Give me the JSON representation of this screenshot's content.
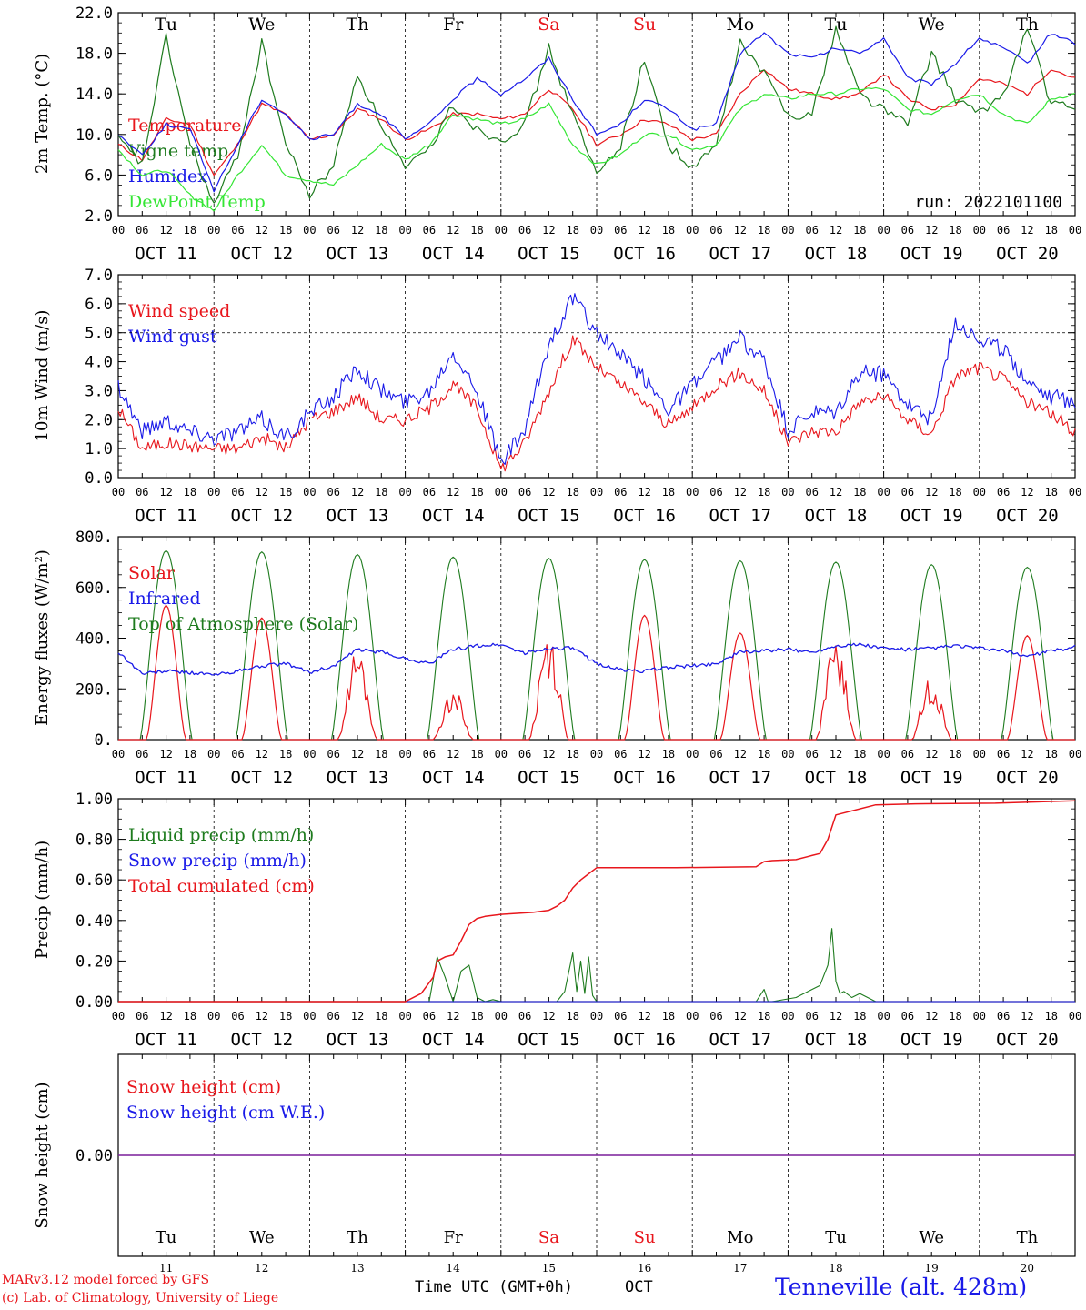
{
  "chart_data": [
    {
      "type": "line",
      "ylabel": "2m Temp. (°C)",
      "ylim": [
        2,
        22
      ],
      "yticks": [
        "2.0",
        "6.0",
        "10.0",
        "14.0",
        "18.0",
        "22.0"
      ],
      "ytick_values": [
        2,
        6,
        10,
        14,
        18,
        22
      ],
      "annotation": "run: 2022101100",
      "weekday_labels": [
        {
          "text": "Tu",
          "color": "#000000"
        },
        {
          "text": "We",
          "color": "#000000"
        },
        {
          "text": "Th",
          "color": "#000000"
        },
        {
          "text": "Fr",
          "color": "#000000"
        },
        {
          "text": "Sa",
          "color": "#e8161c"
        },
        {
          "text": "Su",
          "color": "#e8161c"
        },
        {
          "text": "Mo",
          "color": "#000000"
        },
        {
          "text": "Tu",
          "color": "#000000"
        },
        {
          "text": "We",
          "color": "#000000"
        },
        {
          "text": "Th",
          "color": "#000000"
        }
      ],
      "x_hours": [
        0,
        6,
        12,
        18,
        24,
        30,
        36,
        42,
        48,
        54,
        60,
        66,
        72,
        78,
        84,
        90,
        96,
        102,
        108,
        114,
        120,
        126,
        132,
        138,
        144,
        150,
        156,
        162,
        168,
        174,
        180,
        186,
        192,
        198,
        204,
        210,
        216,
        222,
        228,
        234,
        240
      ],
      "series": [
        {
          "name": "Temperature",
          "color": "#e8161c",
          "values": [
            9.0,
            7.5,
            11.5,
            11.0,
            6.0,
            9.0,
            13.0,
            12.0,
            9.5,
            10.0,
            12.5,
            11.5,
            9.5,
            10.5,
            12.0,
            12.0,
            11.5,
            12.0,
            14.5,
            12.5,
            9.0,
            10.0,
            11.5,
            11.0,
            9.5,
            10.0,
            14.0,
            16.5,
            14.5,
            14.0,
            13.5,
            14.0,
            16.0,
            13.5,
            12.5,
            13.0,
            15.5,
            15.0,
            14.0,
            16.5,
            15.5
          ]
        },
        {
          "name": "Vigne temp",
          "color": "#1e7b1e",
          "values": [
            9.5,
            7.0,
            19.5,
            9.0,
            3.0,
            8.0,
            19.0,
            9.0,
            4.0,
            7.0,
            16.0,
            11.0,
            6.5,
            8.5,
            13.0,
            10.5,
            9.5,
            11.0,
            18.5,
            12.0,
            6.0,
            9.0,
            17.5,
            9.0,
            6.5,
            9.0,
            19.0,
            16.0,
            12.0,
            12.0,
            20.5,
            14.0,
            12.5,
            11.0,
            18.0,
            13.5,
            12.0,
            14.0,
            20.5,
            13.0,
            12.5
          ]
        },
        {
          "name": "Humidex",
          "color": "#1a1ae8",
          "values": [
            10.0,
            8.0,
            11.0,
            10.5,
            4.5,
            9.0,
            13.5,
            12.0,
            9.5,
            10.0,
            13.0,
            12.0,
            9.5,
            11.0,
            13.5,
            15.5,
            14.0,
            15.5,
            17.5,
            13.5,
            10.0,
            11.0,
            13.5,
            12.5,
            10.5,
            11.0,
            18.0,
            20.0,
            18.0,
            17.5,
            18.5,
            18.0,
            19.5,
            15.5,
            15.0,
            17.0,
            19.5,
            18.5,
            17.0,
            20.0,
            19.0
          ]
        },
        {
          "name": "DewPoint Temp",
          "color": "#35e635",
          "values": [
            8.5,
            6.0,
            6.5,
            4.0,
            2.5,
            6.0,
            9.0,
            6.0,
            5.5,
            5.0,
            7.0,
            9.0,
            7.5,
            9.0,
            12.0,
            11.5,
            11.0,
            11.5,
            13.0,
            9.0,
            7.0,
            8.0,
            10.0,
            10.0,
            8.5,
            9.0,
            12.5,
            14.0,
            13.5,
            14.0,
            14.0,
            14.5,
            14.5,
            12.5,
            12.0,
            13.5,
            14.0,
            12.0,
            11.0,
            13.5,
            14.0
          ]
        }
      ]
    },
    {
      "type": "line",
      "ylabel": "10m Wind (m/s)",
      "ylim": [
        0,
        7
      ],
      "yticks": [
        "0.0",
        "1.0",
        "2.0",
        "3.0",
        "4.0",
        "5.0",
        "6.0",
        "7.0"
      ],
      "ytick_values": [
        0,
        1,
        2,
        3,
        4,
        5,
        6,
        7
      ],
      "reference_line": 5.0,
      "x_hours": [
        0,
        6,
        12,
        18,
        24,
        30,
        36,
        42,
        48,
        54,
        60,
        66,
        72,
        78,
        84,
        90,
        96,
        102,
        108,
        114,
        120,
        126,
        132,
        138,
        144,
        150,
        156,
        162,
        168,
        174,
        180,
        186,
        192,
        198,
        204,
        210,
        216,
        222,
        228,
        234,
        240
      ],
      "series": [
        {
          "name": "Wind speed",
          "color": "#e8161c",
          "values": [
            2.4,
            1.0,
            1.2,
            1.1,
            1.0,
            1.0,
            1.4,
            1.0,
            2.0,
            2.3,
            2.8,
            2.0,
            2.0,
            2.4,
            3.2,
            2.4,
            0.3,
            1.2,
            3.0,
            4.8,
            3.8,
            3.2,
            2.6,
            1.8,
            2.4,
            3.2,
            3.6,
            3.0,
            1.2,
            1.6,
            1.6,
            2.6,
            2.8,
            2.0,
            1.5,
            3.5,
            3.8,
            3.4,
            2.6,
            2.2,
            1.6
          ]
        },
        {
          "name": "Wind gust",
          "color": "#1a1ae8",
          "values": [
            3.2,
            1.6,
            2.0,
            1.6,
            1.4,
            1.6,
            2.0,
            1.4,
            2.2,
            2.8,
            3.8,
            3.0,
            2.6,
            3.0,
            4.4,
            3.0,
            0.5,
            1.6,
            4.6,
            6.2,
            5.0,
            4.2,
            3.4,
            2.4,
            3.2,
            4.0,
            4.8,
            4.0,
            1.6,
            2.2,
            2.2,
            3.6,
            3.6,
            2.6,
            2.0,
            5.4,
            4.8,
            4.4,
            3.4,
            2.8,
            2.6
          ]
        }
      ]
    },
    {
      "type": "line",
      "ylabel": "Energy fluxes (W/m²)",
      "ylim": [
        0,
        800
      ],
      "yticks": [
        "0.",
        "200.",
        "400.",
        "600.",
        "800."
      ],
      "ytick_values": [
        0,
        200,
        400,
        600,
        800
      ],
      "daily_toa_peak": [
        745,
        740,
        730,
        720,
        715,
        710,
        705,
        700,
        690,
        680
      ],
      "daily_solar_peak": [
        530,
        480,
        280,
        160,
        340,
        490,
        420,
        310,
        200,
        410
      ],
      "series": [
        {
          "name": "Solar",
          "color": "#e8161c"
        },
        {
          "name": "Infrared",
          "color": "#1a1ae8",
          "x_hours": [
            0,
            6,
            12,
            18,
            24,
            30,
            36,
            42,
            48,
            54,
            60,
            66,
            72,
            78,
            84,
            90,
            96,
            102,
            108,
            114,
            120,
            126,
            132,
            138,
            144,
            150,
            156,
            162,
            168,
            174,
            180,
            186,
            192,
            198,
            204,
            210,
            216,
            222,
            228,
            234,
            240
          ],
          "values": [
            345,
            260,
            270,
            265,
            255,
            270,
            290,
            300,
            265,
            290,
            355,
            345,
            320,
            300,
            355,
            370,
            375,
            340,
            360,
            360,
            300,
            275,
            270,
            285,
            290,
            300,
            345,
            350,
            355,
            345,
            370,
            375,
            360,
            355,
            360,
            370,
            360,
            350,
            330,
            350,
            365
          ]
        },
        {
          "name": "Top of Atmosphere (Solar)",
          "color": "#1e7b1e"
        }
      ]
    },
    {
      "type": "line",
      "ylabel": "Precip (mm/h)",
      "ylim": [
        0,
        1
      ],
      "yticks": [
        "0.00",
        "0.20",
        "0.40",
        "0.60",
        "0.80",
        "1.00"
      ],
      "ytick_values": [
        0,
        0.2,
        0.4,
        0.6,
        0.8,
        1.0
      ],
      "series": [
        {
          "name": "Liquid precip (mm/h)",
          "color": "#1e7b1e",
          "x_hours": [
            0,
            72,
            78,
            80,
            82,
            84,
            86,
            88,
            90,
            92,
            94,
            96,
            100,
            110,
            112,
            114,
            115,
            116,
            117,
            118,
            119,
            120,
            122,
            160,
            162,
            163,
            164,
            170,
            176,
            178,
            179,
            180,
            181,
            182,
            184,
            186,
            190,
            240
          ],
          "values": [
            0,
            0,
            0,
            0.22,
            0.12,
            0.0,
            0.15,
            0.18,
            0.02,
            0.0,
            0.01,
            0,
            0,
            0,
            0.05,
            0.24,
            0.05,
            0.2,
            0.04,
            0.22,
            0.03,
            0.0,
            0,
            0,
            0.06,
            0,
            0,
            0.02,
            0.08,
            0.18,
            0.36,
            0.1,
            0.04,
            0.05,
            0.02,
            0.04,
            0.0,
            0
          ]
        },
        {
          "name": "Snow precip (mm/h)",
          "color": "#1a1ae8",
          "x_hours": [
            0,
            240
          ],
          "values": [
            0,
            0
          ]
        },
        {
          "name": "Total cumulated (cm)",
          "color": "#e8161c",
          "x_hours": [
            0,
            72,
            76,
            79,
            80,
            82,
            84,
            86,
            88,
            90,
            92,
            96,
            100,
            104,
            108,
            110,
            112,
            114,
            116,
            118,
            120,
            140,
            160,
            162,
            164,
            170,
            174,
            176,
            178,
            180,
            190,
            200,
            220,
            240
          ],
          "values": [
            0.0,
            0.0,
            0.04,
            0.12,
            0.2,
            0.22,
            0.23,
            0.3,
            0.38,
            0.41,
            0.42,
            0.43,
            0.435,
            0.44,
            0.45,
            0.47,
            0.5,
            0.56,
            0.6,
            0.63,
            0.66,
            0.66,
            0.665,
            0.69,
            0.695,
            0.7,
            0.72,
            0.73,
            0.8,
            0.92,
            0.97,
            0.975,
            0.978,
            0.99
          ]
        }
      ]
    },
    {
      "type": "line",
      "ylabel": "Snow height (cm)",
      "yticks": [
        "0.00"
      ],
      "series": [
        {
          "name": "Snow height (cm)",
          "color": "#e8161c",
          "x_hours": [
            0,
            240
          ],
          "values": [
            0,
            0
          ]
        },
        {
          "name": "Snow height (cm W.E.)",
          "color": "#1a1ae8",
          "x_hours": [
            0,
            240
          ],
          "values": [
            0,
            0
          ]
        }
      ]
    }
  ],
  "x_axis": {
    "hour_ticks": [
      "00",
      "06",
      "12",
      "18"
    ],
    "end_tick": "00",
    "dates": [
      "OCT 11",
      "OCT 12",
      "OCT 13",
      "OCT 14",
      "OCT 15",
      "OCT 16",
      "OCT 17",
      "OCT 18",
      "OCT 19",
      "OCT 20"
    ],
    "day_numbers": [
      "11",
      "12",
      "13",
      "14",
      "15",
      "16",
      "17",
      "18",
      "19",
      "20"
    ]
  },
  "footer": {
    "credit_line1": "MARv3.12 model forced by GFS",
    "credit_line2": "(c) Lab. of Climatology, University of Liege",
    "xlabel": "Time UTC (GMT+0h)",
    "month": "OCT",
    "location": "Tenneville (alt. 428m)"
  },
  "colors": {
    "red": "#e8161c",
    "blue": "#1a1ae8",
    "dark_green": "#1e7b1e",
    "light_green": "#35e635",
    "purple": "#7a1e9a",
    "axis": "#000000"
  }
}
